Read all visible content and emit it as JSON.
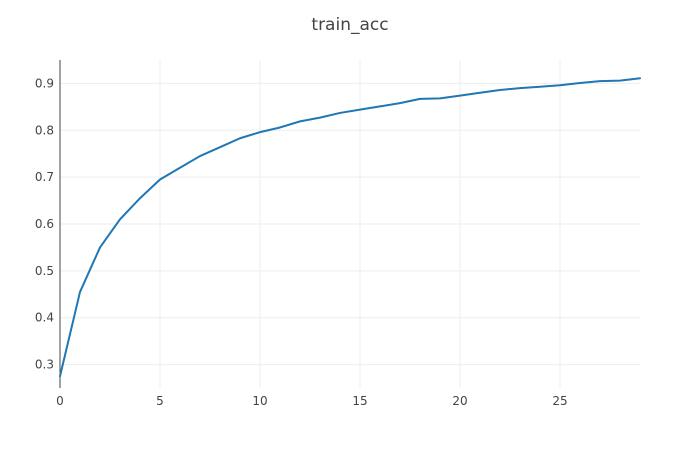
{
  "chart_data": {
    "type": "line",
    "title": "train_acc",
    "xlabel": "",
    "ylabel": "",
    "xlim": [
      0,
      29
    ],
    "ylim": [
      0.25,
      0.95
    ],
    "xticks": [
      0,
      5,
      10,
      15,
      20,
      25
    ],
    "yticks": [
      0.3,
      0.4,
      0.5,
      0.6,
      0.7,
      0.8,
      0.9
    ],
    "grid": true,
    "legend": "none",
    "series": [
      {
        "color": "#1f77b4",
        "x": [
          0,
          1,
          2,
          3,
          4,
          5,
          6,
          7,
          8,
          9,
          10,
          11,
          12,
          13,
          14,
          15,
          16,
          17,
          18,
          19,
          20,
          21,
          22,
          23,
          24,
          25,
          26,
          27,
          28,
          29
        ],
        "y": [
          0.275,
          0.455,
          0.55,
          0.61,
          0.655,
          0.695,
          0.72,
          0.745,
          0.764,
          0.783,
          0.796,
          0.806,
          0.819,
          0.827,
          0.837,
          0.844,
          0.851,
          0.858,
          0.867,
          0.868,
          0.874,
          0.88,
          0.886,
          0.89,
          0.893,
          0.896,
          0.901,
          0.905,
          0.906,
          0.911
        ]
      }
    ]
  }
}
